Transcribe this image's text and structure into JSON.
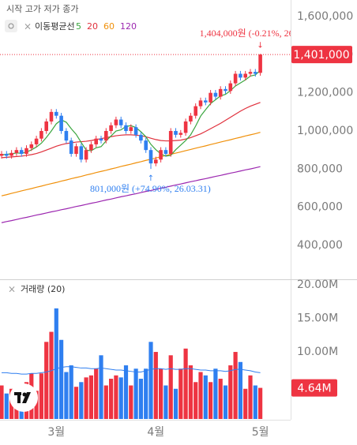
{
  "chart_data": [
    {
      "type": "candlestick",
      "ohlc_title": "시작 고가 저가 종가",
      "ma_title": "이동평균선",
      "categories": [
        null,
        null,
        null,
        null,
        null,
        null,
        null,
        null,
        null,
        null,
        null,
        "3월",
        null,
        null,
        null,
        null,
        null,
        null,
        null,
        null,
        null,
        null,
        null,
        null,
        null,
        null,
        null,
        null,
        null,
        null,
        null,
        "4월",
        null,
        null,
        null,
        null,
        null,
        null,
        null,
        null,
        null,
        null,
        null,
        null,
        null,
        null,
        null,
        null,
        null,
        null,
        null,
        null,
        "5월"
      ],
      "open": [
        870000,
        880000,
        870000,
        885000,
        900000,
        880000,
        910000,
        930000,
        960000,
        1000000,
        1050000,
        1100000,
        1080000,
        1000000,
        950000,
        880000,
        920000,
        850000,
        900000,
        930000,
        960000,
        950000,
        1000000,
        1030000,
        1060000,
        1030000,
        1000000,
        1020000,
        980000,
        950000,
        900000,
        830000,
        850000,
        900000,
        880000,
        1000000,
        980000,
        990000,
        1050000,
        1080000,
        1130000,
        1160000,
        1150000,
        1200000,
        1180000,
        1220000,
        1210000,
        1250000,
        1300000,
        1280000,
        1300000,
        1310000,
        1305000
      ],
      "high": [
        895000,
        895000,
        900000,
        915000,
        915000,
        925000,
        945000,
        975000,
        1015000,
        1065000,
        1115000,
        1115000,
        1095000,
        1015000,
        965000,
        935000,
        935000,
        915000,
        945000,
        975000,
        975000,
        1015000,
        1045000,
        1075000,
        1075000,
        1045000,
        1035000,
        1035000,
        995000,
        965000,
        915000,
        865000,
        915000,
        915000,
        1015000,
        1015000,
        1005000,
        1065000,
        1095000,
        1145000,
        1175000,
        1175000,
        1215000,
        1215000,
        1235000,
        1235000,
        1265000,
        1315000,
        1315000,
        1315000,
        1325000,
        1325000,
        1404000
      ],
      "low": [
        855000,
        855000,
        855000,
        870000,
        865000,
        865000,
        895000,
        915000,
        945000,
        985000,
        1035000,
        1065000,
        985000,
        935000,
        865000,
        865000,
        835000,
        835000,
        885000,
        915000,
        935000,
        935000,
        985000,
        1015000,
        1015000,
        985000,
        985000,
        965000,
        935000,
        885000,
        801000,
        815000,
        835000,
        865000,
        865000,
        965000,
        965000,
        975000,
        1035000,
        1065000,
        1115000,
        1135000,
        1135000,
        1165000,
        1165000,
        1195000,
        1195000,
        1235000,
        1265000,
        1265000,
        1285000,
        1285000,
        1290000
      ],
      "close": [
        880000,
        870000,
        885000,
        900000,
        880000,
        910000,
        930000,
        960000,
        1000000,
        1050000,
        1100000,
        1080000,
        1000000,
        950000,
        880000,
        920000,
        850000,
        900000,
        930000,
        960000,
        950000,
        1000000,
        1030000,
        1060000,
        1030000,
        1000000,
        1020000,
        980000,
        950000,
        900000,
        830000,
        850000,
        900000,
        880000,
        1000000,
        980000,
        990000,
        1050000,
        1080000,
        1130000,
        1160000,
        1150000,
        1200000,
        1180000,
        1220000,
        1210000,
        1250000,
        1300000,
        1280000,
        1300000,
        1310000,
        1300000,
        1401000
      ],
      "up_color": "#ee3442",
      "down_color": "#2f7ff0",
      "ma_series": [
        {
          "name": "5",
          "color": "#3aa63f",
          "values": [
            875000,
            878000,
            880000,
            885000,
            883000,
            889000,
            901000,
            916000,
            936000,
            966000,
            1000000,
            1038000,
            1058000,
            1046000,
            1012000,
            982000,
            940000,
            900000,
            896000,
            912000,
            918000,
            948000,
            974000,
            1000000,
            1006000,
            1024000,
            1028000,
            1018000,
            996000,
            970000,
            930000,
            902000,
            880000,
            868000,
            872000,
            902000,
            926000,
            950000,
            980000,
            1026000,
            1078000,
            1112000,
            1144000,
            1164000,
            1184000,
            1192000,
            1212000,
            1236000,
            1252000,
            1268000,
            1288000,
            1294000,
            1318000
          ]
        },
        {
          "name": "20",
          "color": "#e0303c",
          "values": [
            860000,
            862000,
            864000,
            866000,
            868000,
            872000,
            876000,
            882000,
            890000,
            900000,
            910000,
            920000,
            928000,
            934000,
            938000,
            942000,
            944000,
            946000,
            950000,
            955000,
            960000,
            965000,
            970000,
            975000,
            978000,
            980000,
            980000,
            978000,
            975000,
            970000,
            962000,
            955000,
            950000,
            948000,
            948000,
            950000,
            952000,
            958000,
            965000,
            975000,
            985000,
            998000,
            1012000,
            1026000,
            1040000,
            1056000,
            1072000,
            1088000,
            1104000,
            1118000,
            1130000,
            1140000,
            1150000
          ]
        },
        {
          "name": "60",
          "color": "#f0900a",
          "values": [
            660000,
            666000,
            673000,
            679000,
            686000,
            692000,
            698000,
            705000,
            711000,
            718000,
            724000,
            730000,
            737000,
            743000,
            750000,
            756000,
            762000,
            769000,
            775000,
            782000,
            788000,
            794000,
            801000,
            807000,
            814000,
            820000,
            826000,
            833000,
            839000,
            846000,
            852000,
            858000,
            865000,
            871000,
            878000,
            884000,
            890000,
            897000,
            903000,
            910000,
            916000,
            922000,
            929000,
            935000,
            942000,
            948000,
            954000,
            961000,
            967000,
            974000,
            980000,
            986000,
            993000
          ]
        },
        {
          "name": "120",
          "color": "#9c27b0",
          "values": [
            519000,
            525000,
            530000,
            536000,
            542000,
            547000,
            553000,
            559000,
            564000,
            570000,
            576000,
            581000,
            587000,
            592000,
            598000,
            604000,
            609000,
            615000,
            621000,
            626000,
            632000,
            638000,
            643000,
            649000,
            655000,
            660000,
            666000,
            671000,
            677000,
            683000,
            688000,
            694000,
            700000,
            705000,
            711000,
            717000,
            722000,
            728000,
            734000,
            739000,
            745000,
            750000,
            756000,
            762000,
            767000,
            773000,
            779000,
            784000,
            790000,
            796000,
            801000,
            807000,
            813000
          ]
        }
      ],
      "ylim": [
        218000,
        1687000
      ],
      "yticks": [
        {
          "value": 400000,
          "label": "400,000"
        },
        {
          "value": 600000,
          "label": "600,000"
        },
        {
          "value": 800000,
          "label": "800,000"
        },
        {
          "value": 1000000,
          "label": "1,000,000"
        },
        {
          "value": 1200000,
          "label": "1,200,000"
        },
        {
          "value": 1400000,
          "label": "1,400,000"
        },
        {
          "value": 1600000,
          "label": "1,600,000"
        }
      ],
      "last_price_label": "1,401,000",
      "high_annotation": "1,404,000원 (-0.21%, 26",
      "low_annotation": "801,000원 (+74.90%, 26.03.31)"
    },
    {
      "type": "bar",
      "title": "거래량 (20)",
      "values": [
        5000000,
        3800000,
        4500000,
        3500000,
        4200000,
        5500000,
        6800000,
        4200000,
        6800000,
        11500000,
        13000000,
        16500000,
        11800000,
        7000000,
        8000000,
        4800000,
        5500000,
        6200000,
        6500000,
        7500000,
        9500000,
        5000000,
        6000000,
        6500000,
        6200000,
        8000000,
        5000000,
        7500000,
        6000000,
        7500000,
        11500000,
        10000000,
        7500000,
        5000000,
        9500000,
        4500000,
        7500000,
        10500000,
        8000000,
        5500000,
        7000000,
        6500000,
        5500000,
        7500000,
        6000000,
        5000000,
        8000000,
        10000000,
        8500000,
        4500000,
        6500000,
        5000000,
        4640000
      ],
      "ma_values": [
        6900000,
        6900000,
        6800000,
        6800000,
        6700000,
        6700000,
        6800000,
        6800000,
        6900000,
        7000000,
        7200000,
        7500000,
        7700000,
        7800000,
        7800000,
        7700000,
        7600000,
        7600000,
        7500000,
        7500000,
        7600000,
        7500000,
        7400000,
        7300000,
        7300000,
        7200000,
        7100000,
        7000000,
        7000000,
        7200000,
        7400000,
        7500000,
        7500000,
        7400000,
        7500000,
        7400000,
        7400000,
        7500000,
        7500000,
        7400000,
        7300000,
        7300000,
        7200000,
        7200000,
        7200000,
        7100000,
        7200000,
        7400000,
        7400000,
        7300000,
        7200000,
        7000000,
        6900000
      ],
      "ma_color": "#2f7ff0",
      "ylim": [
        0,
        20600000
      ],
      "yticks": [
        {
          "value": 10000000,
          "label": "10.00M"
        },
        {
          "value": 15000000,
          "label": "15.00M"
        },
        {
          "value": 20000000,
          "label": "20.00M"
        }
      ],
      "last_value_label": "4.64M"
    }
  ]
}
